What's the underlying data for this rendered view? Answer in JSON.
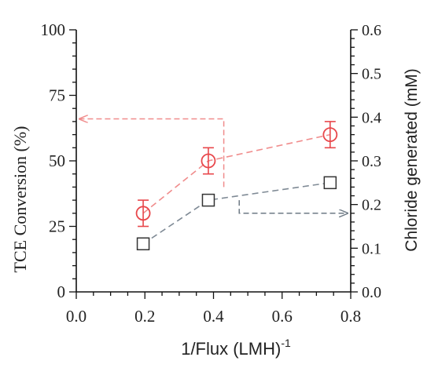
{
  "chart_data": {
    "type": "scatter",
    "xlabel_main": "1/Flux (LMH)",
    "xlabel_sup": "-1",
    "ylabel_left": "TCE  Conversion (%)",
    "ylabel_right": "Chloride generated (mM)",
    "xlim": [
      0.0,
      0.8
    ],
    "ylim_left": [
      0,
      100
    ],
    "ylim_right": [
      0.0,
      0.6
    ],
    "xticks": [
      "0.0",
      "0.2",
      "0.4",
      "0.6",
      "0.8"
    ],
    "yticks_left": [
      "0",
      "25",
      "50",
      "75",
      "100"
    ],
    "yticks_right": [
      "0.0",
      "0.1",
      "0.2",
      "0.3",
      "0.4",
      "0.5",
      "0.6"
    ],
    "series": [
      {
        "axis": "left",
        "marker": "circle",
        "color": "#e8474b",
        "x": [
          0.195,
          0.385,
          0.74
        ],
        "y": [
          30,
          50,
          60
        ],
        "err": [
          5,
          5,
          5
        ]
      },
      {
        "axis": "right",
        "marker": "square",
        "color": "#6e7a85",
        "x": [
          0.195,
          0.385,
          0.74
        ],
        "y": [
          0.11,
          0.21,
          0.25
        ]
      }
    ],
    "annotations": [
      {
        "type": "arrow",
        "direction": "left-axis",
        "color": "#f08c8c",
        "from_x": 0.43,
        "from_y_left": 40,
        "elbow_y_left": 66,
        "to_x": 0.0
      },
      {
        "type": "arrow",
        "direction": "right-axis",
        "color": "#6e7a85",
        "from_x": 0.475,
        "from_y_right": 0.21,
        "elbow_y_right": 0.18,
        "to_x": 0.8
      }
    ]
  }
}
